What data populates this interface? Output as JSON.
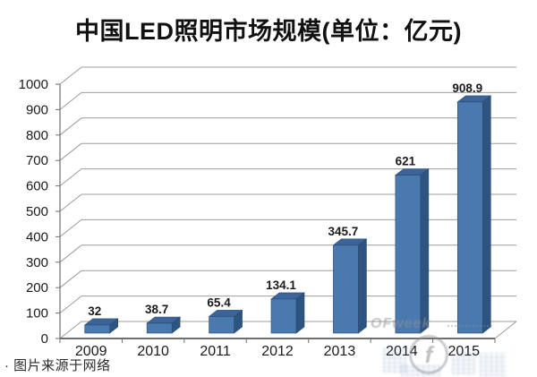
{
  "footer": {
    "note": "· 图片来源于网络"
  },
  "watermark": {
    "brand": "OFweek"
  },
  "colors": {
    "bar_front": "#4A79B0",
    "bar_top": "#3B659A",
    "bar_side": "#2E5480",
    "bar_edge": "#27496F",
    "gridline": "#9C9C9C",
    "axis": "#6E6E6E",
    "text": "#1A1A1A",
    "background": "#FFFFFF"
  },
  "chart_data": {
    "type": "bar",
    "style": "3d-column",
    "title": "中国LED照明市场规模(单位：亿元)",
    "categories": [
      "2009",
      "2010",
      "2011",
      "2012",
      "2013",
      "2014",
      "2015"
    ],
    "values": [
      32,
      38.7,
      65.4,
      134.1,
      345.7,
      621,
      908.9
    ],
    "value_labels": [
      "32",
      "38.7",
      "65.4",
      "134.1",
      "345.7",
      "621",
      "908.9"
    ],
    "xlabel": "",
    "ylabel": "",
    "ylim": [
      0,
      1000
    ],
    "yticks": [
      0,
      100,
      200,
      300,
      400,
      500,
      600,
      700,
      800,
      900,
      1000
    ],
    "grid": true,
    "legend": false
  }
}
